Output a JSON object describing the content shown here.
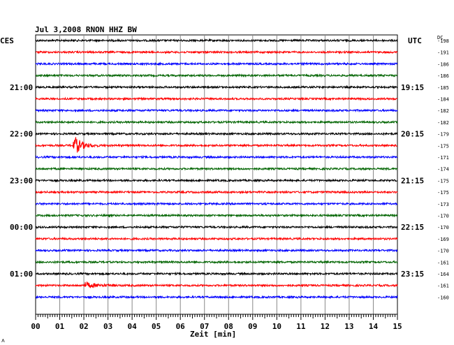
{
  "chart_data": {
    "type": "line",
    "title": "Jul 3,2008   RNON HHZ BW",
    "left_label": "CES",
    "right_label": "UTC",
    "dc_label": "DC",
    "xlabel": "Zeit [min]",
    "xlim": [
      0,
      15
    ],
    "x_ticks": [
      "00",
      "01",
      "02",
      "03",
      "04",
      "05",
      "06",
      "07",
      "08",
      "09",
      "10",
      "11",
      "12",
      "13",
      "14",
      "15"
    ],
    "grid": true,
    "trace_colors": [
      "#000000",
      "#ff0000",
      "#0000ff",
      "#006400"
    ],
    "left_time_labels": [
      {
        "trace": 4,
        "text": "21:00"
      },
      {
        "trace": 8,
        "text": "22:00"
      },
      {
        "trace": 12,
        "text": "23:00"
      },
      {
        "trace": 16,
        "text": "00:00"
      },
      {
        "trace": 20,
        "text": "01:00"
      }
    ],
    "right_time_labels": [
      {
        "trace": 4,
        "text": "19:15"
      },
      {
        "trace": 8,
        "text": "20:15"
      },
      {
        "trace": 12,
        "text": "21:15"
      },
      {
        "trace": 16,
        "text": "22:15"
      },
      {
        "trace": 20,
        "text": "23:15"
      }
    ],
    "dc_offsets": [
      "-198",
      "-191",
      "-186",
      "-186",
      "-185",
      "-184",
      "-182",
      "-182",
      "-179",
      "-175",
      "-171",
      "-174",
      "-175",
      "-175",
      "-173",
      "-170",
      "-170",
      "-169",
      "-170",
      "-161",
      "-164",
      "-161",
      "-160"
    ],
    "events": [
      {
        "trace": 9,
        "x_min": 1.6,
        "amplitude": "large"
      },
      {
        "trace": 21,
        "x_min": 2.05,
        "amplitude": "small"
      }
    ],
    "corner_mark": "ʌ"
  }
}
